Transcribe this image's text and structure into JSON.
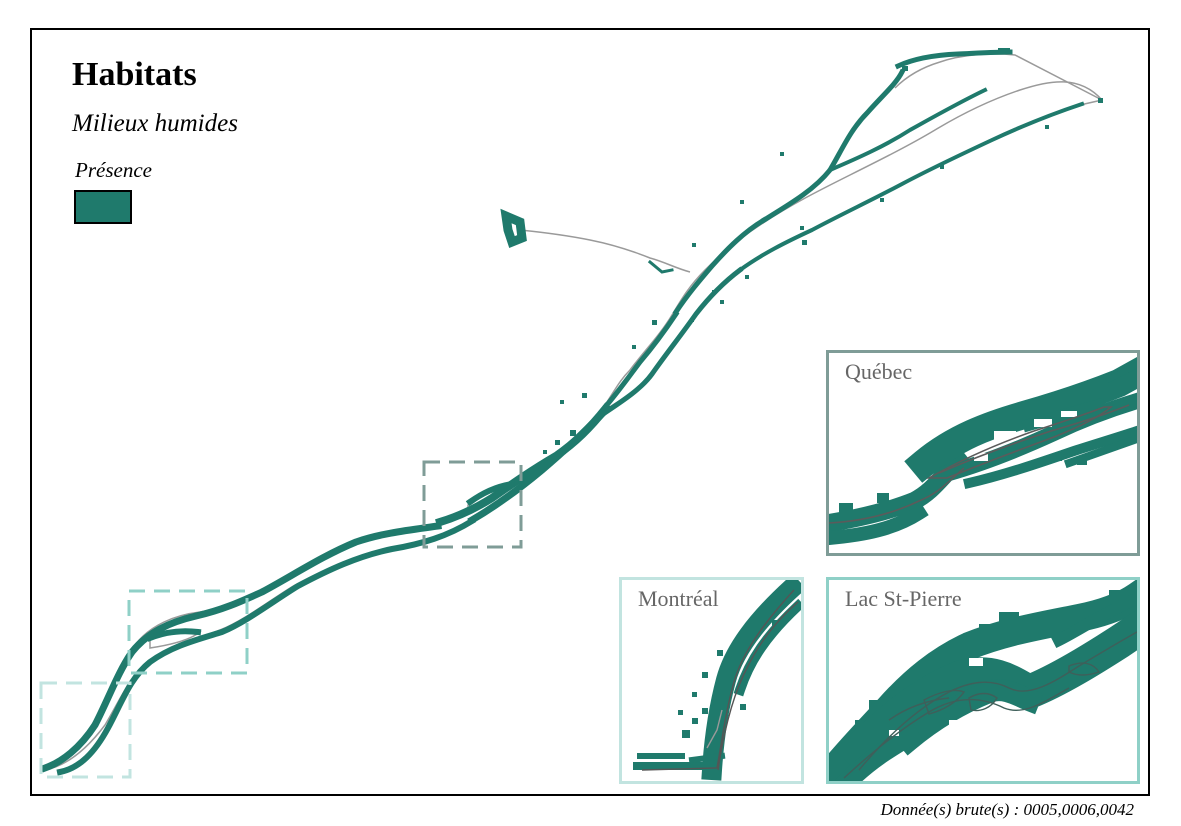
{
  "title": "Habitats",
  "subtitle": "Milieux humides",
  "legend": {
    "label": "Présence",
    "color": "#1f7a6c"
  },
  "colors": {
    "habitat": "#1f7a6c",
    "river_outline": "#9a9a9a",
    "frame": "#000000",
    "quebec_box": "#7f9c97",
    "lacstpierre_box": "#8fd0c7",
    "montreal_box": "#c2e4e0"
  },
  "insets": {
    "quebec": {
      "label": "Québec"
    },
    "montreal": {
      "label": "Montréal"
    },
    "lac_st_pierre": {
      "label": "Lac St-Pierre"
    }
  },
  "source": "Donnée(s) brute(s) : 0005,0006,0042"
}
